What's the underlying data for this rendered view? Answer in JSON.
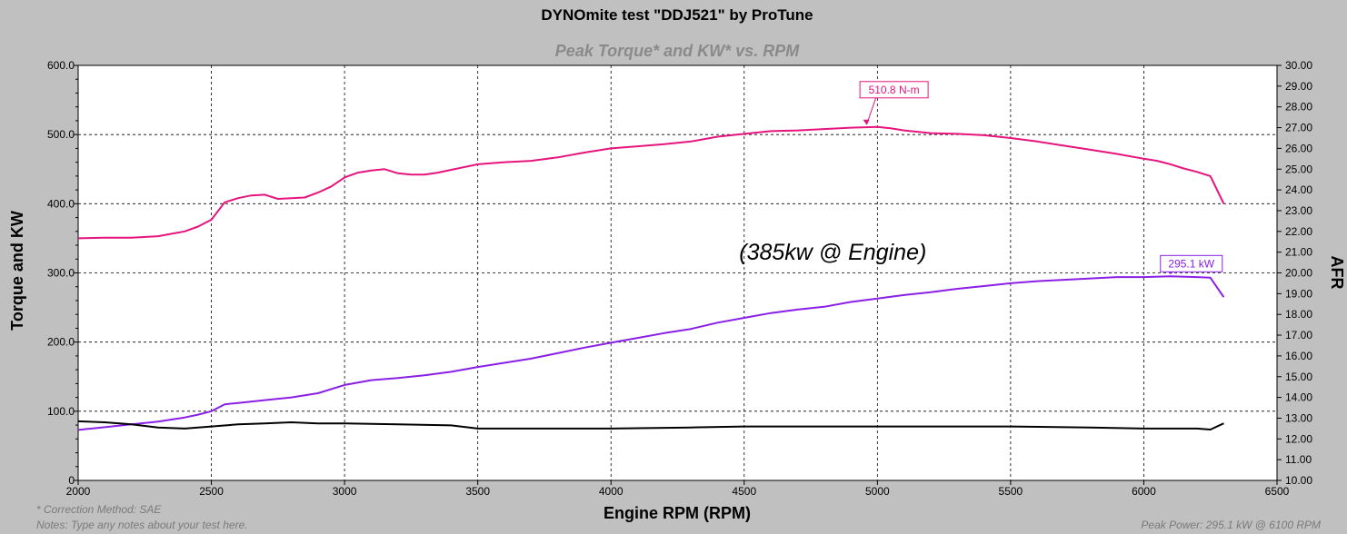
{
  "chart_data": {
    "type": "line",
    "title": "DYNOmite test \"DDJ521\" by ProTune",
    "subtitle": "Peak Torque* and KW* vs. RPM",
    "xlabel": "Engine RPM (RPM)",
    "ylabel": "Torque and KW",
    "y2label": "AFR",
    "xlim": [
      2000,
      6500
    ],
    "ylim": [
      0,
      600
    ],
    "y2lim": [
      10,
      30
    ],
    "x_ticks": [
      "2000",
      "2500",
      "3000",
      "3500",
      "4000",
      "4500",
      "5000",
      "5500",
      "6000",
      "6500"
    ],
    "y_ticks": [
      "0",
      "100.0",
      "200.0",
      "300.0",
      "400.0",
      "500.0",
      "600.0"
    ],
    "y2_ticks": [
      "10.00",
      "11.00",
      "12.00",
      "13.00",
      "14.00",
      "15.00",
      "16.00",
      "17.00",
      "18.00",
      "19.00",
      "20.00",
      "21.00",
      "22.00",
      "23.00",
      "24.00",
      "25.00",
      "26.00",
      "27.00",
      "28.00",
      "29.00",
      "30.00"
    ],
    "grid": true,
    "series": [
      {
        "axis": "left",
        "color": "#e6147d",
        "x": [
          2000,
          2100,
          2200,
          2300,
          2400,
          2450,
          2500,
          2550,
          2600,
          2650,
          2700,
          2750,
          2800,
          2850,
          2900,
          2950,
          3000,
          3050,
          3100,
          3150,
          3200,
          3250,
          3300,
          3350,
          3400,
          3500,
          3600,
          3700,
          3800,
          3900,
          4000,
          4100,
          4200,
          4300,
          4400,
          4500,
          4600,
          4700,
          4800,
          4900,
          5000,
          5050,
          5100,
          5200,
          5300,
          5400,
          5500,
          5600,
          5700,
          5800,
          5900,
          6000,
          6050,
          6100,
          6150,
          6200,
          6250,
          6300
        ],
        "values": [
          350,
          351,
          351,
          353,
          360,
          367,
          377,
          402,
          408,
          412,
          413,
          407,
          408,
          409,
          416,
          425,
          438,
          445,
          448,
          450,
          444,
          442,
          442,
          445,
          449,
          457,
          460,
          462,
          467,
          474,
          480,
          483,
          486,
          490,
          497,
          501,
          505,
          506,
          508,
          510,
          511,
          509,
          506,
          502,
          501,
          499,
          495,
          490,
          484,
          478,
          472,
          465,
          462,
          457,
          451,
          446,
          440,
          400
        ]
      },
      {
        "axis": "left",
        "color": "#8a20e6",
        "x": [
          2000,
          2100,
          2200,
          2300,
          2400,
          2450,
          2500,
          2550,
          2600,
          2700,
          2800,
          2900,
          3000,
          3100,
          3200,
          3300,
          3400,
          3500,
          3600,
          3700,
          3800,
          3900,
          4000,
          4100,
          4200,
          4300,
          4400,
          4500,
          4600,
          4700,
          4800,
          4900,
          5000,
          5100,
          5200,
          5300,
          5400,
          5500,
          5600,
          5700,
          5800,
          5900,
          6000,
          6100,
          6200,
          6250,
          6300
        ],
        "values": [
          73,
          77,
          81,
          85,
          91,
          95,
          100,
          110,
          112,
          116,
          120,
          126,
          138,
          145,
          148,
          152,
          157,
          164,
          170,
          176,
          184,
          192,
          199,
          206,
          213,
          219,
          228,
          235,
          242,
          247,
          251,
          258,
          263,
          268,
          272,
          277,
          281,
          285,
          288,
          290,
          292,
          294,
          294,
          295,
          294,
          293,
          265
        ]
      },
      {
        "axis": "right",
        "color": "#000000",
        "x": [
          2000,
          2100,
          2200,
          2300,
          2400,
          2500,
          2600,
          2700,
          2800,
          2900,
          3000,
          3200,
          3400,
          3500,
          3700,
          4000,
          4300,
          4500,
          4800,
          5000,
          5300,
          5500,
          5800,
          6000,
          6200,
          6250,
          6300
        ],
        "values": [
          12.85,
          12.8,
          12.7,
          12.55,
          12.5,
          12.6,
          12.7,
          12.75,
          12.8,
          12.75,
          12.75,
          12.7,
          12.65,
          12.5,
          12.5,
          12.5,
          12.55,
          12.6,
          12.6,
          12.6,
          12.6,
          12.6,
          12.55,
          12.5,
          12.5,
          12.45,
          12.75
        ]
      }
    ],
    "annotations": [
      {
        "text": "510.8 N-m",
        "x": 4960,
        "y": 511,
        "color": "#e6147d"
      },
      {
        "text": "295.1 kW",
        "x": 6100,
        "y": 295,
        "color": "#8a20e6"
      },
      {
        "text": "(385kw @ Engine)",
        "x": 5300,
        "y": 340
      }
    ]
  },
  "footer": {
    "correction": "* Correction Method: SAE",
    "notes": "Notes: Type any notes about your test here.",
    "peak_power": "Peak Power: 295.1 kW @ 6100 RPM"
  }
}
